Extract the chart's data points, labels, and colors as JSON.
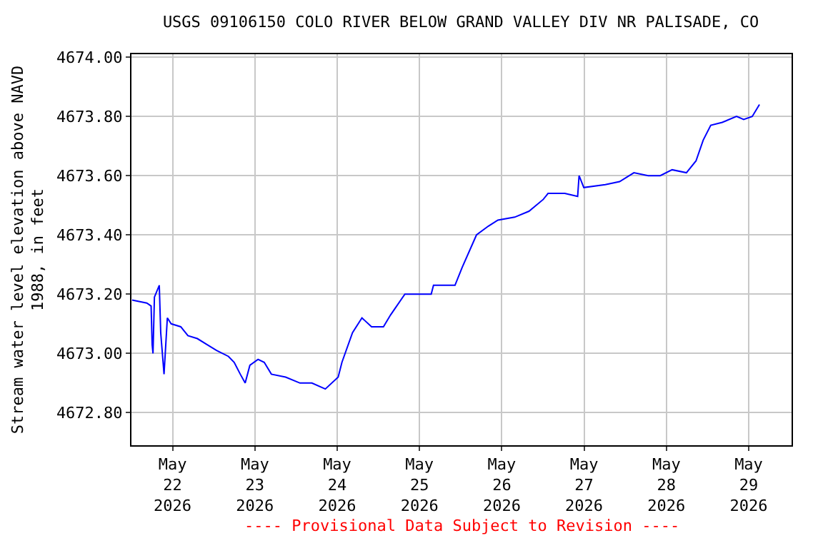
{
  "chart_data": {
    "type": "line",
    "title": "USGS 09106150 COLO RIVER BELOW GRAND VALLEY DIV NR PALISADE, CO",
    "ylabel": "Stream water level elevation above NAVD\n1988, in feet",
    "annotations": [
      "---- Provisional Data Subject to Revision ----"
    ],
    "x": [
      "2026-05-21T12:11",
      "2026-05-21T16:29",
      "2026-05-21T17:44",
      "2026-05-21T18:02",
      "2026-05-21T18:17",
      "2026-05-21T18:42",
      "2026-05-21T20:07",
      "2026-05-21T20:32",
      "2026-05-21T21:30",
      "2026-05-21T22:28",
      "2026-05-21T23:35",
      "2026-05-22T02:23",
      "2026-05-22T04:28",
      "2026-05-22T07:13",
      "2026-05-22T10:01",
      "2026-05-22T12:49",
      "2026-05-22T16:17",
      "2026-05-22T17:57",
      "2026-05-22T19:44",
      "2026-05-22T21:10",
      "2026-05-22T22:32",
      "2026-05-23T00:55",
      "2026-05-23T02:43",
      "2026-05-23T04:48",
      "2026-05-23T08:58",
      "2026-05-23T13:09",
      "2026-05-23T16:37",
      "2026-05-23T20:32",
      "2026-05-24T00:17",
      "2026-05-24T01:23",
      "2026-05-24T04:28",
      "2026-05-24T07:13",
      "2026-05-24T10:01",
      "2026-05-24T13:29",
      "2026-05-24T15:34",
      "2026-05-24T19:44",
      "2026-05-24T21:10",
      "2026-05-25T03:25",
      "2026-05-25T04:05",
      "2026-05-25T10:21",
      "2026-05-25T12:26",
      "2026-05-25T16:37",
      "2026-05-25T20:07",
      "2026-05-25T22:52",
      "2026-05-26T03:46",
      "2026-05-26T07:56",
      "2026-05-26T12:06",
      "2026-05-26T13:29",
      "2026-05-26T18:22",
      "2026-05-26T22:07",
      "2026-05-26T22:32",
      "2026-05-26T23:55",
      "2026-05-27T06:11",
      "2026-05-27T10:21",
      "2026-05-27T14:31",
      "2026-05-27T18:42",
      "2026-05-27T22:12",
      "2026-05-28T01:40",
      "2026-05-28T05:50",
      "2026-05-28T08:38",
      "2026-05-28T10:44",
      "2026-05-28T12:56",
      "2026-05-28T16:17",
      "2026-05-28T20:27",
      "2026-05-28T22:32",
      "2026-05-29T01:02",
      "2026-05-29T03:08"
    ],
    "series": [
      {
        "color": "#0000ff",
        "values": [
          4673.18,
          4673.17,
          4673.16,
          4673.03,
          4673.0,
          4673.19,
          4673.23,
          4673.07,
          4672.93,
          4673.12,
          4673.1,
          4673.09,
          4673.06,
          4673.05,
          4673.03,
          4673.01,
          4672.99,
          4672.97,
          4672.93,
          4672.9,
          4672.96,
          4672.98,
          4672.97,
          4672.93,
          4672.92,
          4672.9,
          4672.9,
          4672.88,
          4672.92,
          4672.97,
          4673.07,
          4673.12,
          4673.09,
          4673.09,
          4673.13,
          4673.2,
          4673.2,
          4673.2,
          4673.23,
          4673.23,
          4673.29,
          4673.4,
          4673.43,
          4673.45,
          4673.46,
          4673.48,
          4673.52,
          4673.54,
          4673.54,
          4673.53,
          4673.6,
          4673.56,
          4673.57,
          4673.58,
          4673.61,
          4673.6,
          4673.6,
          4673.62,
          4673.61,
          4673.65,
          4673.72,
          4673.77,
          4673.78,
          4673.8,
          4673.79,
          4673.8,
          4673.84
        ]
      }
    ],
    "xlim": [
      "2026-05-21T12:00",
      "2026-05-29T12:30"
    ],
    "xticks": [
      {
        "value": "2026-05-22",
        "label": "May\n22\n2026"
      },
      {
        "value": "2026-05-23",
        "label": "May\n23\n2026"
      },
      {
        "value": "2026-05-24",
        "label": "May\n24\n2026"
      },
      {
        "value": "2026-05-25",
        "label": "May\n25\n2026"
      },
      {
        "value": "2026-05-26",
        "label": "May\n26\n2026"
      },
      {
        "value": "2026-05-27",
        "label": "May\n27\n2026"
      },
      {
        "value": "2026-05-28",
        "label": "May\n28\n2026"
      },
      {
        "value": "2026-05-29",
        "label": "May\n29\n2026"
      }
    ],
    "ylim": [
      4672.69,
      4674.01
    ],
    "yticks": [
      {
        "value": 4672.8,
        "label": "4672.80"
      },
      {
        "value": 4673.0,
        "label": "4673.00"
      },
      {
        "value": 4673.2,
        "label": "4673.20"
      },
      {
        "value": 4673.4,
        "label": "4673.40"
      },
      {
        "value": 4673.6,
        "label": "4673.60"
      },
      {
        "value": 4673.8,
        "label": "4673.80"
      },
      {
        "value": 4674.0,
        "label": "4674.00"
      }
    ],
    "grid": true,
    "marker": "none",
    "line_style": "solid"
  }
}
